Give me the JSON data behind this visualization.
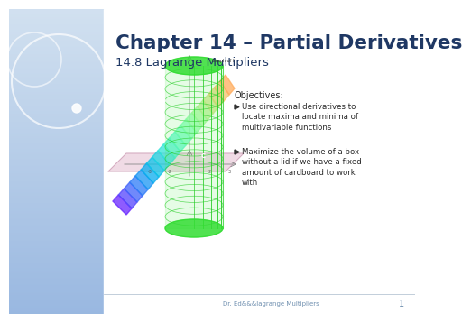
{
  "title": "Chapter 14 – Partial Derivatives",
  "subtitle": "14.8 Lagrange Multipliers",
  "objectives_header": "Objectives:",
  "bullet1": "Use directional derivatives to\nlocate maxima and minima of\nmultivariable functions",
  "bullet2": "Maximize the volume of a box\nwithout a lid if we have a fixed\namount of cardboard to work\nwith",
  "footer_text": "Dr. Ed&&&lagrange Multipliers",
  "page_number": "1",
  "title_color": "#1f3864",
  "subtitle_color": "#1f3864",
  "text_color": "#2a2a2a",
  "footer_color": "#7090b0",
  "left_bg_top": "#a8c8e8",
  "left_bg_bottom": "#d0dff0",
  "slide_bg": "#ffffff",
  "circle_color": "#b8d4ec"
}
